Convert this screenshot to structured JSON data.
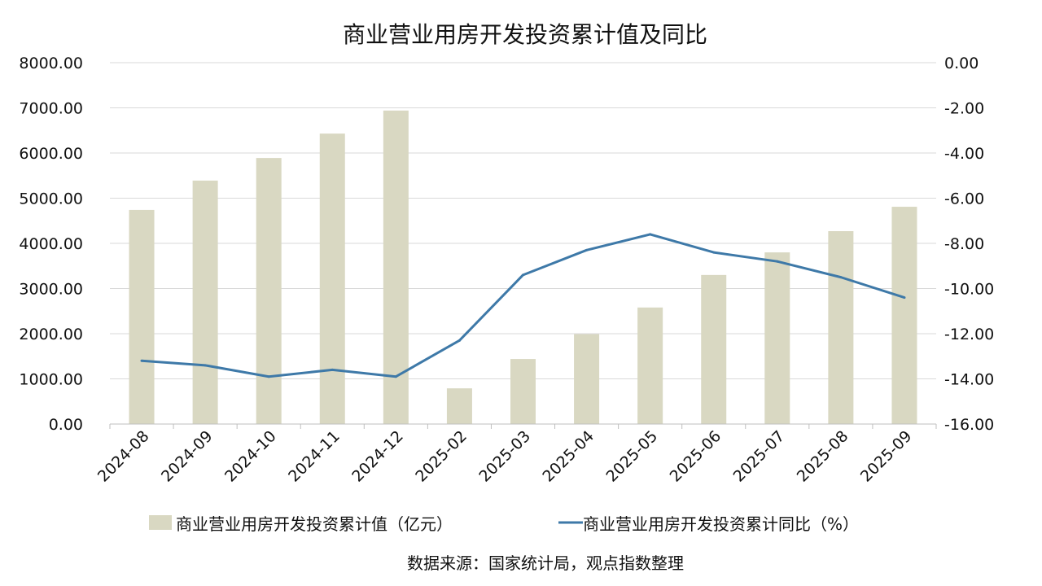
{
  "chart_data": {
    "type": "bar",
    "title": "商业营业用房开发投资累计值及同比",
    "source": "数据来源：国家统计局，观点指数整理",
    "categories": [
      "2024-08",
      "2024-09",
      "2024-10",
      "2024-11",
      "2024-12",
      "2025-02",
      "2025-03",
      "2025-04",
      "2025-05",
      "2025-06",
      "2025-07",
      "2025-08",
      "2025-09"
    ],
    "left_axis": {
      "ylim": [
        0,
        8000
      ],
      "ticks": [
        "0.00",
        "1000.00",
        "2000.00",
        "3000.00",
        "4000.00",
        "5000.00",
        "6000.00",
        "7000.00",
        "8000.00"
      ]
    },
    "right_axis": {
      "ylim": [
        -16,
        0
      ],
      "ticks": [
        "-16.00",
        "-14.00",
        "-12.00",
        "-10.00",
        "-8.00",
        "-6.00",
        "-4.00",
        "-2.00",
        "0.00"
      ]
    },
    "series": [
      {
        "name": "商业营业用房开发投资累计值（亿元）",
        "type": "bar",
        "axis": "left",
        "color": "#d9d8c2",
        "values": [
          4740,
          5390,
          5890,
          6430,
          6940,
          790,
          1440,
          1990,
          2580,
          3300,
          3800,
          4270,
          4810
        ]
      },
      {
        "name": "商业营业用房开发投资累计同比（%）",
        "type": "line",
        "axis": "right",
        "color": "#3e79a8",
        "values": [
          -13.2,
          -13.4,
          -13.9,
          -13.6,
          -13.9,
          -12.3,
          -9.4,
          -8.3,
          -7.6,
          -8.4,
          -8.8,
          -9.5,
          -10.4
        ]
      }
    ],
    "grid": true,
    "legend": "bottom"
  }
}
